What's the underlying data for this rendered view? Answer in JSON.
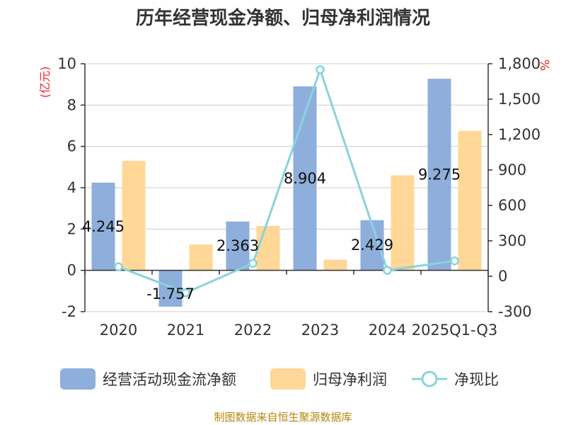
{
  "title": "历年经营现金净额、归母净利润情况",
  "source_note": "制图数据来自恒生聚源数据库",
  "chart_data": {
    "type": "bar",
    "categories": [
      "2020",
      "2021",
      "2022",
      "2023",
      "2024",
      "2025Q1-Q3"
    ],
    "series": [
      {
        "name": "经营活动现金流净额",
        "kind": "bar",
        "axis": "left",
        "color": "#8eaedb",
        "values": [
          4.245,
          -1.757,
          2.363,
          8.904,
          2.429,
          9.275
        ],
        "data_labels": [
          "4.245",
          "-1.757",
          "2.363",
          "8.904",
          "2.429",
          "9.275"
        ]
      },
      {
        "name": "归母净利润",
        "kind": "bar",
        "axis": "left",
        "color": "#ffd797",
        "values": [
          5.3,
          1.25,
          2.15,
          0.52,
          4.6,
          6.75
        ]
      },
      {
        "name": "净现比",
        "kind": "line",
        "axis": "right",
        "color": "#89d3dc",
        "values": [
          80,
          -140,
          110,
          1750,
          50,
          130
        ]
      }
    ],
    "y_left": {
      "unit": "(亿元)",
      "min": -2,
      "max": 10,
      "ticks": [
        "10",
        "8",
        "6",
        "4",
        "2",
        "0",
        "-2"
      ]
    },
    "y_right": {
      "unit": "%",
      "min": -300,
      "max": 1800,
      "ticks": [
        "1,800",
        "1,500",
        "1,200",
        "900",
        "600",
        "300",
        "0",
        "-300"
      ]
    },
    "grid": true,
    "legend_position": "bottom"
  }
}
